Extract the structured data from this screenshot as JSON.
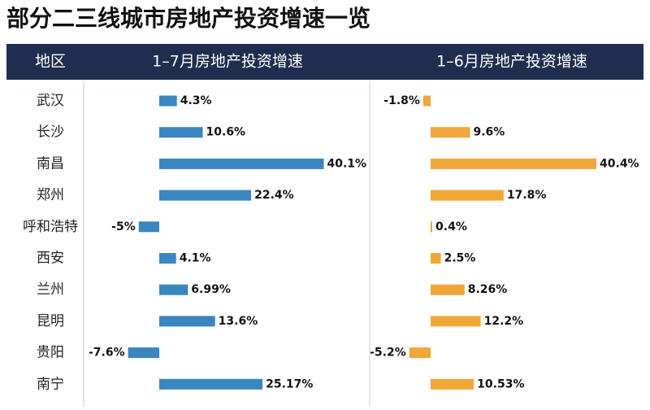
{
  "chart_data": {
    "type": "bar",
    "orientation": "horizontal",
    "title": "部分二三线城市房地产投资增速一览",
    "category_header": "地区",
    "categories": [
      "武汉",
      "长沙",
      "南昌",
      "郑州",
      "呼和浩特",
      "西安",
      "兰州",
      "昆明",
      "贵阳",
      "南宁"
    ],
    "series": [
      {
        "name": "1–7月房地产投资增速",
        "color": "#3a86c0",
        "values": [
          4.3,
          10.6,
          40.1,
          22.4,
          -5,
          4.1,
          6.99,
          13.6,
          -7.6,
          25.17
        ],
        "value_labels": [
          "4.3%",
          "10.6%",
          "40.1%",
          "22.4%",
          "-5%",
          "4.1%",
          "6.99%",
          "13.6%",
          "-7.6%",
          "25.17%"
        ]
      },
      {
        "name": "1–6月房地产投资增速",
        "color": "#f0a738",
        "values": [
          -1.8,
          9.6,
          40.4,
          17.8,
          0.4,
          2.5,
          8.26,
          12.2,
          -5.2,
          10.53
        ],
        "value_labels": [
          "-1.8%",
          "9.6%",
          "40.4%",
          "17.8%",
          "0.4%",
          "2.5%",
          "8.26%",
          "12.2%",
          "-5.2%",
          "10.53%"
        ]
      }
    ]
  }
}
